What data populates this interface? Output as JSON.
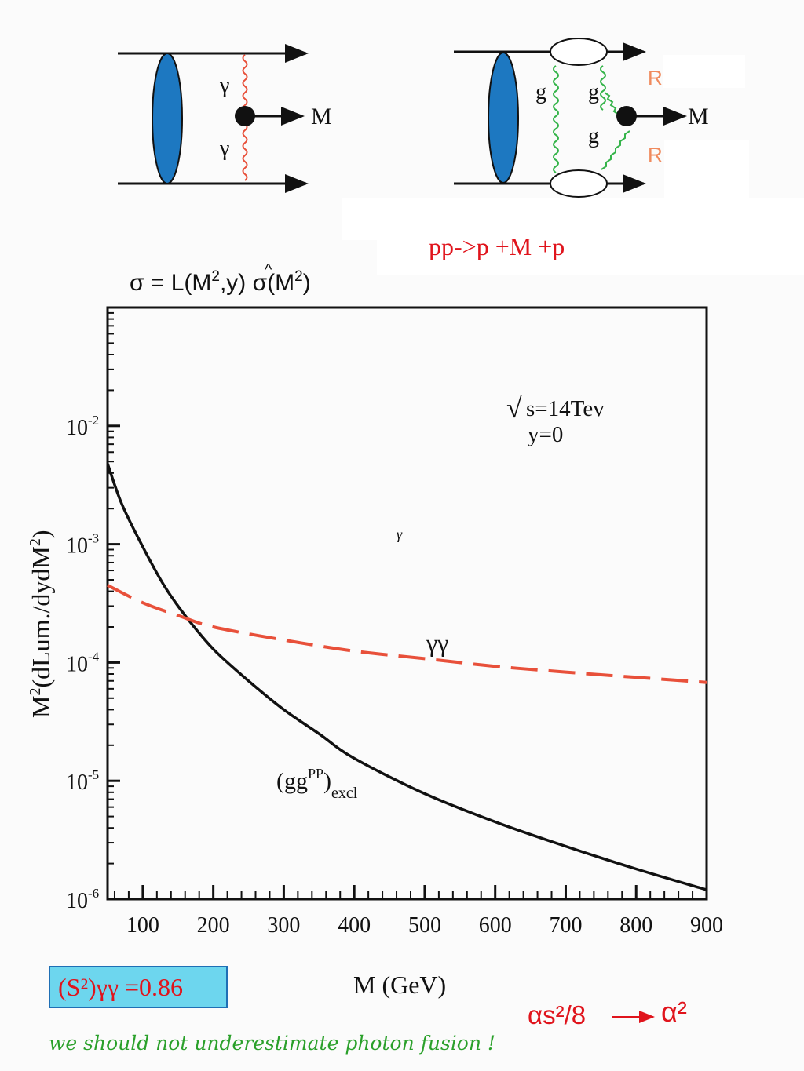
{
  "diagram_left": {
    "gamma_top": "γ",
    "gamma_bottom": "γ",
    "product": "M"
  },
  "diagram_right": {
    "gluon_left": "g",
    "gluon_right_top": "g",
    "gluon_right_bottom": "g",
    "product": "M",
    "mark_top": "R",
    "mark_bottom": "R"
  },
  "process_label": "pp->p +M +p",
  "formula": {
    "prefix": "σ = L(M",
    "sup1": "2",
    "mid": ",y) ",
    "sigma_hat": "σ",
    "paren_open": "(M",
    "sup2": "2",
    "paren_close": ")"
  },
  "annotations": {
    "sqrt_sign": "√",
    "energy": "s=14Tev",
    "rapidity": "y=0",
    "stray_symbol": "γ",
    "gg_label_main": "(gg",
    "gg_label_sup": "PP",
    "gg_label_close": ")",
    "gg_label_sub": "excl",
    "gamma_gamma_label": "γγ"
  },
  "survival_box": "(S²)γγ  =0.86",
  "coupling": {
    "from": "αs²/8",
    "to": "α²"
  },
  "footnote": "we should not underestimate   photon  fusion  !",
  "colors": {
    "gluon_curve": "#111111",
    "photon_curve": "#e8503a",
    "blob": "#1d78c1",
    "gluon_line": "#35b44a",
    "photon_line": "#e8503a",
    "red_text": "#e0141c",
    "footnote": "#2aa02a"
  },
  "chart_data": {
    "type": "line",
    "xlabel": "M (GeV)",
    "ylabel_main": "M",
    "ylabel_sup1": "2",
    "ylabel_rest": "(dLum./dydM",
    "ylabel_sup2": "2",
    "ylabel_close": ")",
    "xlim": [
      50,
      900
    ],
    "ylim": [
      1e-06,
      0.1
    ],
    "y_scale": "log",
    "x_ticks": [
      100,
      200,
      300,
      400,
      500,
      600,
      700,
      800,
      900
    ],
    "y_ticks": [
      {
        "value": 0.01,
        "base": "10",
        "exp": "-2"
      },
      {
        "value": 0.001,
        "base": "10",
        "exp": "-3"
      },
      {
        "value": 0.0001,
        "base": "10",
        "exp": "-4"
      },
      {
        "value": 1e-05,
        "base": "10",
        "exp": "-5"
      },
      {
        "value": 1e-06,
        "base": "10",
        "exp": "-6"
      }
    ],
    "grid": false,
    "series": [
      {
        "style": "solid",
        "x": [
          50,
          70,
          100,
          130,
          160,
          200,
          250,
          300,
          350,
          400,
          500,
          600,
          700,
          800,
          900
        ],
        "y": [
          0.0048,
          0.0022,
          0.00095,
          0.00045,
          0.00025,
          0.00013,
          7e-05,
          4e-05,
          2.5e-05,
          1.55e-05,
          7.8e-06,
          4.5e-06,
          2.8e-06,
          1.8e-06,
          1.2e-06
        ]
      },
      {
        "style": "dashed",
        "x": [
          50,
          100,
          150,
          200,
          300,
          400,
          500,
          600,
          700,
          800,
          900
        ],
        "y": [
          0.00045,
          0.00032,
          0.00025,
          0.0002,
          0.000155,
          0.000125,
          0.000108,
          9.3e-05,
          8.3e-05,
          7.5e-05,
          6.8e-05
        ]
      }
    ]
  }
}
